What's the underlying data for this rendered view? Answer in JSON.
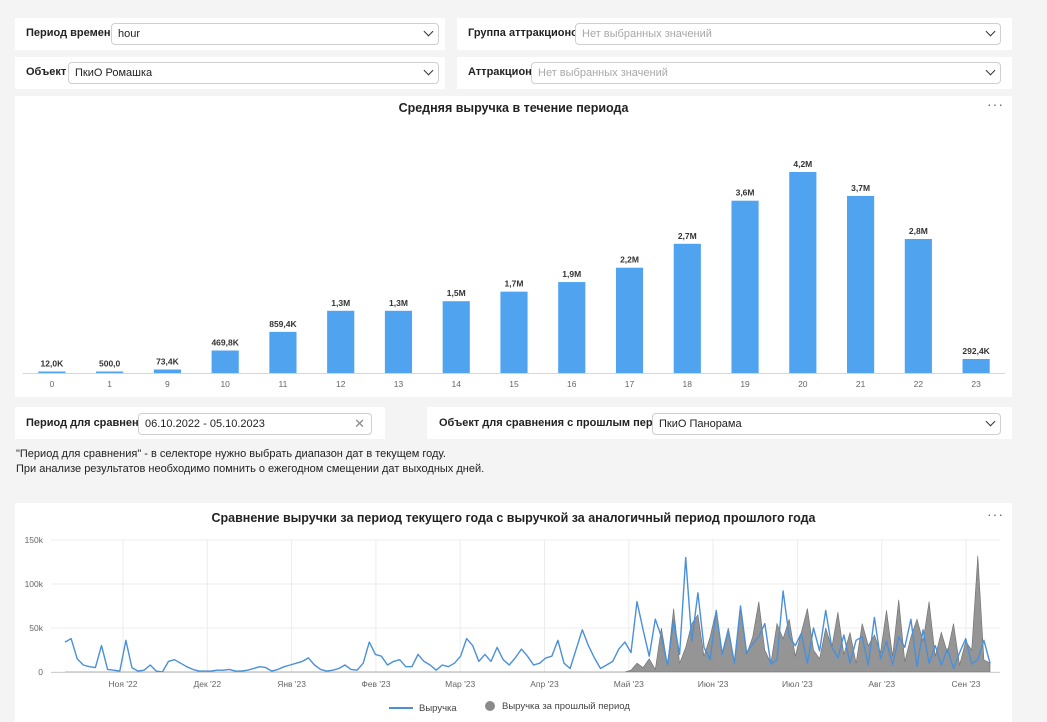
{
  "filters": {
    "period": {
      "label": "Период времени",
      "value": "hour"
    },
    "group": {
      "label": "Группа аттракционов",
      "placeholder": "Нет выбранных значений"
    },
    "object": {
      "label": "Объект",
      "value": "ПкиО Ромашка"
    },
    "attraction": {
      "label": "Аттракцион",
      "placeholder": "Нет выбранных значений"
    }
  },
  "bar_chart": {
    "menu_icon": "more-dots-icon",
    "color": "#4fa3ef"
  },
  "comparison": {
    "period": {
      "label": "Период для сравнения",
      "value": "06.10.2022 - 05.10.2023"
    },
    "object": {
      "label": "Объект для сравнения с прошлым периодом",
      "value": "ПкиО Панорама"
    }
  },
  "notes": {
    "line1": "\"Период для сравнения\" - в селекторе нужно выбрать диапазон дат в текущем году.",
    "line2": "При анализе результатов необходимо помнить о ежегодном смещении дат выходных дней."
  },
  "line_chart": {
    "menu_icon": "more-dots-icon",
    "colors": {
      "current": "#4a90d9",
      "previous": "#8a8a8a"
    }
  },
  "chart_data": [
    {
      "type": "bar",
      "title": "Средняя выручка в течение периода",
      "categories": [
        "0",
        "1",
        "9",
        "10",
        "11",
        "12",
        "13",
        "14",
        "15",
        "16",
        "17",
        "18",
        "19",
        "20",
        "21",
        "22",
        "23"
      ],
      "values": [
        12000,
        500,
        73400,
        469800,
        859400,
        1300000,
        1300000,
        1500000,
        1700000,
        1900000,
        2200000,
        2700000,
        3600000,
        4200000,
        3700000,
        2800000,
        292400
      ],
      "labels": [
        "12,0K",
        "500,0",
        "73,4K",
        "469,8K",
        "859,4K",
        "1,3M",
        "1,3M",
        "1,5M",
        "1,7M",
        "1,9M",
        "2,2M",
        "2,7M",
        "3,6M",
        "4,2M",
        "3,7M",
        "2,8M",
        "292,4K"
      ],
      "ylim": [
        0,
        4200000
      ],
      "grid": false
    },
    {
      "type": "area",
      "title": "Сравнение выручки за период текущего года с выручкой за аналогичный период прошлого года",
      "x_ticks": [
        "Ноя '22",
        "Дек '22",
        "Янв '23",
        "Фев '23",
        "Мар '23",
        "Апр '23",
        "Май '23",
        "Июн '23",
        "Июл '23",
        "Авг '23",
        "Сен '23"
      ],
      "y_ticks": [
        "0",
        "50k",
        "100k",
        "150k"
      ],
      "ylim": [
        0,
        150000
      ],
      "legend_placement": "bottom",
      "series": [
        {
          "name": "Выручка",
          "style": "line",
          "values": [
            34000,
            38000,
            15000,
            8000,
            6000,
            5000,
            30000,
            3000,
            2000,
            1000,
            36000,
            5000,
            1000,
            2000,
            8000,
            1000,
            0,
            12000,
            14000,
            10000,
            6000,
            3000,
            1000,
            1000,
            1000,
            2000,
            2000,
            3000,
            1000,
            1000,
            2000,
            4000,
            6000,
            5000,
            1000,
            3000,
            6000,
            8000,
            10000,
            12000,
            16000,
            8000,
            3000,
            1000,
            2000,
            4000,
            8000,
            3000,
            2000,
            10000,
            34000,
            20000,
            18000,
            8000,
            12000,
            14000,
            6000,
            6000,
            20000,
            12000,
            8000,
            2000,
            8000,
            6000,
            10000,
            18000,
            38000,
            30000,
            12000,
            20000,
            12000,
            28000,
            14000,
            8000,
            16000,
            26000,
            18000,
            8000,
            10000,
            16000,
            18000,
            36000,
            10000,
            4000,
            26000,
            48000,
            30000,
            16000,
            4000,
            8000,
            12000,
            26000,
            34000,
            22000,
            80000,
            48000,
            18000,
            60000,
            40000,
            8000,
            58000,
            20000,
            130000,
            35000,
            90000,
            28000,
            14000,
            70000,
            20000,
            48000,
            10000,
            75000,
            22000,
            32000,
            40000,
            55000,
            9000,
            14000,
            92000,
            40000,
            30000,
            44000,
            10000,
            50000,
            24000,
            70000,
            28000,
            16000,
            42000,
            10000,
            36000,
            40000,
            8000,
            62000,
            15000,
            35000,
            8000,
            40000,
            28000,
            60000,
            6000,
            48000,
            10000,
            30000,
            8000,
            26000,
            4000,
            22000,
            38000,
            9000,
            14000,
            36000,
            10000
          ]
        },
        {
          "name": "Выручка за прошлый период",
          "style": "area",
          "values": [
            0,
            0,
            0,
            0,
            0,
            0,
            0,
            0,
            0,
            0,
            0,
            0,
            0,
            0,
            0,
            0,
            0,
            0,
            0,
            0,
            0,
            0,
            0,
            0,
            0,
            0,
            0,
            0,
            0,
            0,
            0,
            0,
            0,
            0,
            0,
            0,
            0,
            0,
            0,
            0,
            0,
            0,
            0,
            0,
            0,
            0,
            0,
            0,
            0,
            0,
            0,
            0,
            0,
            0,
            0,
            0,
            0,
            0,
            0,
            0,
            0,
            0,
            0,
            0,
            0,
            0,
            0,
            0,
            0,
            0,
            0,
            0,
            0,
            0,
            0,
            0,
            0,
            0,
            0,
            0,
            0,
            0,
            0,
            0,
            0,
            0,
            0,
            0,
            0,
            0,
            0,
            0,
            0,
            2000,
            10000,
            5000,
            15000,
            3000,
            50000,
            8000,
            72000,
            10000,
            28000,
            55000,
            65000,
            18000,
            40000,
            70000,
            22000,
            50000,
            12000,
            72000,
            20000,
            40000,
            80000,
            25000,
            10000,
            55000,
            38000,
            60000,
            18000,
            45000,
            72000,
            25000,
            15000,
            50000,
            28000,
            68000,
            20000,
            45000,
            10000,
            55000,
            30000,
            42000,
            22000,
            70000,
            18000,
            82000,
            12000,
            40000,
            60000,
            35000,
            80000,
            18000,
            45000,
            22000,
            55000,
            8000,
            35000,
            25000,
            132000,
            14000,
            10000
          ]
        }
      ]
    }
  ]
}
